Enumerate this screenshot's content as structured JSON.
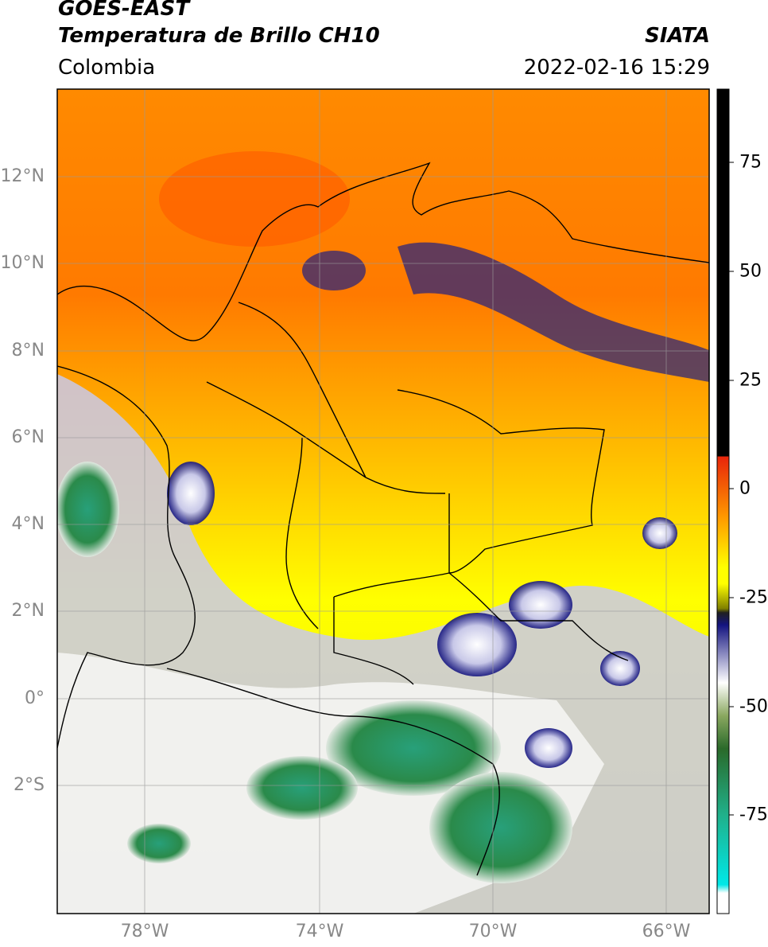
{
  "header": {
    "satellite": "GOES-EAST",
    "product": "Temperatura de Brillo CH10",
    "source": "SIATA",
    "region": "Colombia",
    "datetime": "2022-02-16 15:29"
  },
  "map": {
    "lat_labels": [
      "12°N",
      "10°N",
      "8°N",
      "6°N",
      "4°N",
      "2°N",
      "0°",
      "2°S"
    ],
    "lon_labels": [
      "78°W",
      "74°W",
      "70°W",
      "66°W"
    ]
  },
  "colorbar": {
    "ticks": [
      "75",
      "50",
      "25",
      "0",
      "-25",
      "-50",
      "-75"
    ],
    "colors": [
      "#000000",
      "#e8250a",
      "#ff9a00",
      "#ffff00",
      "#141480",
      "#ffffff",
      "#3a8a3a",
      "#20b08a",
      "#00e0e0"
    ]
  }
}
